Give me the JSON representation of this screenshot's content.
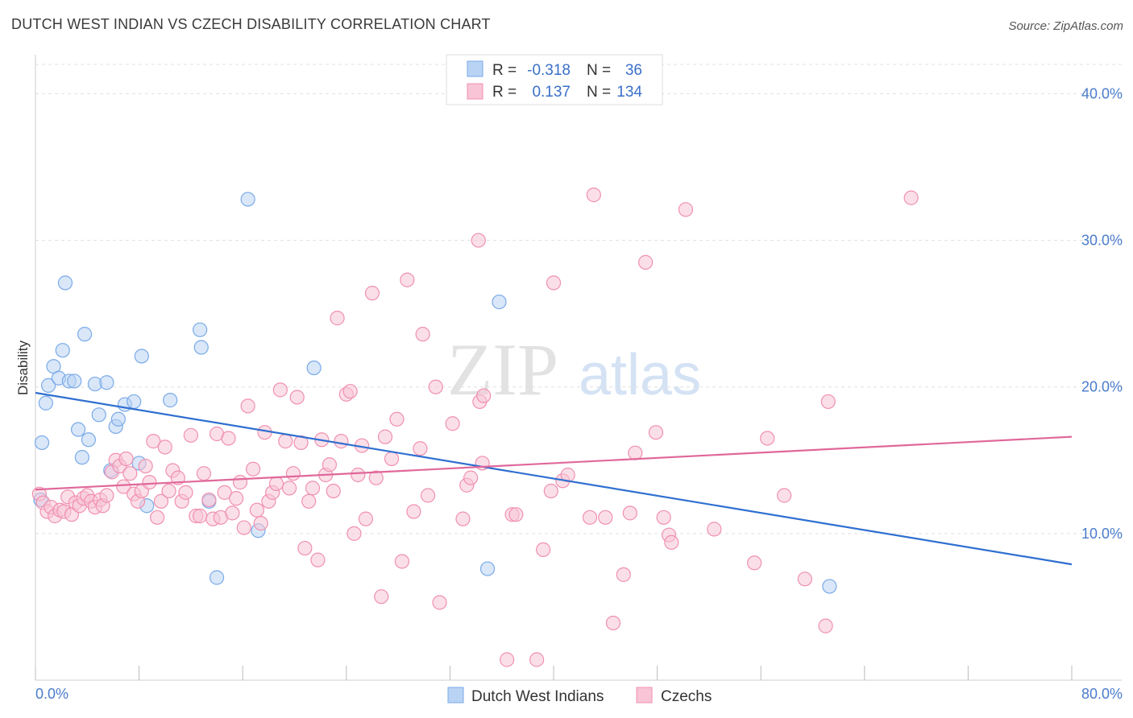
{
  "title": "DUTCH WEST INDIAN VS CZECH DISABILITY CORRELATION CHART",
  "source": "Source: ZipAtlas.com",
  "watermark": {
    "zip": "ZIP",
    "atlas": "atlas"
  },
  "chart_data": {
    "type": "scatter",
    "xlabel": "",
    "ylabel": "Disability",
    "xlim": [
      0,
      80
    ],
    "ylim": [
      0,
      42
    ],
    "x_tick_labels": [
      "0.0%",
      "80.0%"
    ],
    "y_ticks": [
      10,
      20,
      30,
      40
    ],
    "y_tick_labels": [
      "10.0%",
      "20.0%",
      "30.0%",
      "40.0%"
    ],
    "grid": true,
    "legend_placement": "top-center",
    "legend": [
      {
        "r_label": "R =",
        "r_value": "-0.318",
        "n_label": "N =",
        "n_value": "36"
      },
      {
        "r_label": "R =",
        "r_value": "0.137",
        "n_label": "N =",
        "n_value": "134"
      }
    ],
    "series": [
      {
        "name": "Dutch West Indians",
        "color": "#7aaae8",
        "fill": "#b9d3f4",
        "line_color": "#2f6fd0",
        "trend": {
          "x": [
            0,
            80
          ],
          "y": [
            19.6,
            7.9
          ]
        },
        "points": [
          [
            0.4,
            12.3
          ],
          [
            0.5,
            16.2
          ],
          [
            0.8,
            18.9
          ],
          [
            1.0,
            20.1
          ],
          [
            1.4,
            21.4
          ],
          [
            1.8,
            20.6
          ],
          [
            2.1,
            22.5
          ],
          [
            2.3,
            27.1
          ],
          [
            2.6,
            20.4
          ],
          [
            3.0,
            20.4
          ],
          [
            3.3,
            17.1
          ],
          [
            3.6,
            15.2
          ],
          [
            3.8,
            23.6
          ],
          [
            4.1,
            16.4
          ],
          [
            4.6,
            20.2
          ],
          [
            4.9,
            18.1
          ],
          [
            5.5,
            20.3
          ],
          [
            5.8,
            14.3
          ],
          [
            6.2,
            17.3
          ],
          [
            6.4,
            17.8
          ],
          [
            6.9,
            18.8
          ],
          [
            7.6,
            19.0
          ],
          [
            8.0,
            14.8
          ],
          [
            8.2,
            22.1
          ],
          [
            8.6,
            11.9
          ],
          [
            10.4,
            19.1
          ],
          [
            12.7,
            23.9
          ],
          [
            12.8,
            22.7
          ],
          [
            13.4,
            12.2
          ],
          [
            14.0,
            7.0
          ],
          [
            16.4,
            32.8
          ],
          [
            17.2,
            10.2
          ],
          [
            21.5,
            21.3
          ],
          [
            34.9,
            7.6
          ],
          [
            35.8,
            25.8
          ],
          [
            61.3,
            6.4
          ]
        ]
      },
      {
        "name": "Czechs",
        "color": "#f090b0",
        "fill": "#f8c4d6",
        "line_color": "#e0689a",
        "trend": {
          "x": [
            0,
            80
          ],
          "y": [
            13.0,
            16.6
          ]
        },
        "points": [
          [
            0.3,
            12.7
          ],
          [
            0.6,
            12.1
          ],
          [
            0.9,
            11.5
          ],
          [
            1.2,
            11.8
          ],
          [
            1.5,
            11.2
          ],
          [
            1.9,
            11.6
          ],
          [
            2.2,
            11.5
          ],
          [
            2.5,
            12.5
          ],
          [
            2.8,
            11.3
          ],
          [
            3.1,
            12.1
          ],
          [
            3.4,
            11.9
          ],
          [
            3.7,
            12.4
          ],
          [
            4.0,
            12.6
          ],
          [
            4.3,
            12.2
          ],
          [
            4.6,
            11.8
          ],
          [
            5.0,
            12.3
          ],
          [
            5.2,
            11.9
          ],
          [
            5.5,
            12.6
          ],
          [
            5.9,
            14.2
          ],
          [
            6.2,
            15.0
          ],
          [
            6.5,
            14.6
          ],
          [
            6.8,
            13.2
          ],
          [
            7.0,
            15.1
          ],
          [
            7.3,
            14.1
          ],
          [
            7.6,
            12.7
          ],
          [
            7.9,
            12.2
          ],
          [
            8.2,
            12.9
          ],
          [
            8.5,
            14.6
          ],
          [
            8.8,
            13.5
          ],
          [
            9.1,
            16.3
          ],
          [
            9.4,
            11.1
          ],
          [
            9.7,
            12.2
          ],
          [
            10.0,
            15.9
          ],
          [
            10.3,
            12.9
          ],
          [
            10.6,
            14.3
          ],
          [
            11.0,
            13.8
          ],
          [
            11.3,
            12.2
          ],
          [
            11.6,
            12.8
          ],
          [
            12.0,
            16.7
          ],
          [
            12.4,
            11.2
          ],
          [
            12.7,
            11.2
          ],
          [
            13.0,
            14.1
          ],
          [
            13.4,
            12.3
          ],
          [
            13.7,
            11.0
          ],
          [
            14.0,
            16.8
          ],
          [
            14.3,
            11.1
          ],
          [
            14.6,
            12.8
          ],
          [
            14.9,
            16.5
          ],
          [
            15.2,
            11.4
          ],
          [
            15.5,
            12.4
          ],
          [
            15.8,
            13.5
          ],
          [
            16.1,
            10.4
          ],
          [
            16.4,
            18.7
          ],
          [
            16.8,
            14.4
          ],
          [
            17.1,
            11.6
          ],
          [
            17.4,
            10.7
          ],
          [
            17.7,
            16.9
          ],
          [
            18.0,
            12.2
          ],
          [
            18.3,
            12.8
          ],
          [
            18.6,
            13.4
          ],
          [
            18.9,
            19.8
          ],
          [
            19.3,
            16.3
          ],
          [
            19.6,
            13.1
          ],
          [
            19.9,
            14.1
          ],
          [
            20.2,
            19.3
          ],
          [
            20.5,
            16.2
          ],
          [
            20.8,
            9.0
          ],
          [
            21.1,
            12.2
          ],
          [
            21.4,
            13.1
          ],
          [
            21.8,
            8.2
          ],
          [
            22.1,
            16.4
          ],
          [
            22.4,
            14.0
          ],
          [
            22.7,
            14.7
          ],
          [
            23.0,
            12.9
          ],
          [
            23.3,
            24.7
          ],
          [
            23.6,
            16.3
          ],
          [
            24.0,
            19.5
          ],
          [
            24.3,
            19.7
          ],
          [
            24.6,
            10.0
          ],
          [
            24.9,
            14.0
          ],
          [
            25.2,
            16.0
          ],
          [
            25.5,
            11.0
          ],
          [
            26.0,
            26.4
          ],
          [
            26.3,
            13.8
          ],
          [
            26.7,
            5.7
          ],
          [
            27.0,
            16.6
          ],
          [
            27.5,
            15.1
          ],
          [
            27.9,
            17.8
          ],
          [
            28.3,
            8.1
          ],
          [
            28.7,
            27.3
          ],
          [
            29.2,
            11.5
          ],
          [
            29.7,
            15.8
          ],
          [
            29.9,
            23.6
          ],
          [
            30.3,
            12.6
          ],
          [
            30.9,
            20.0
          ],
          [
            31.2,
            5.3
          ],
          [
            32.2,
            17.5
          ],
          [
            33.0,
            11.0
          ],
          [
            33.3,
            13.3
          ],
          [
            33.6,
            13.8
          ],
          [
            34.2,
            30.0
          ],
          [
            34.5,
            14.8
          ],
          [
            34.3,
            19.0
          ],
          [
            34.6,
            19.4
          ],
          [
            36.8,
            11.3
          ],
          [
            37.1,
            11.3
          ],
          [
            36.4,
            1.4
          ],
          [
            38.7,
            1.4
          ],
          [
            39.2,
            8.9
          ],
          [
            39.8,
            12.9
          ],
          [
            40.0,
            27.1
          ],
          [
            40.7,
            13.6
          ],
          [
            41.1,
            14.0
          ],
          [
            42.8,
            11.1
          ],
          [
            43.1,
            33.1
          ],
          [
            44.0,
            11.1
          ],
          [
            44.6,
            3.9
          ],
          [
            45.4,
            7.2
          ],
          [
            45.9,
            11.4
          ],
          [
            46.3,
            15.5
          ],
          [
            47.1,
            28.5
          ],
          [
            47.9,
            16.9
          ],
          [
            48.5,
            11.1
          ],
          [
            48.9,
            9.9
          ],
          [
            49.1,
            9.4
          ],
          [
            50.2,
            32.1
          ],
          [
            52.4,
            10.3
          ],
          [
            55.5,
            8.0
          ],
          [
            56.5,
            16.5
          ],
          [
            57.8,
            12.6
          ],
          [
            59.4,
            6.9
          ],
          [
            61.0,
            3.7
          ],
          [
            61.2,
            19.0
          ],
          [
            67.6,
            32.9
          ]
        ]
      }
    ]
  }
}
